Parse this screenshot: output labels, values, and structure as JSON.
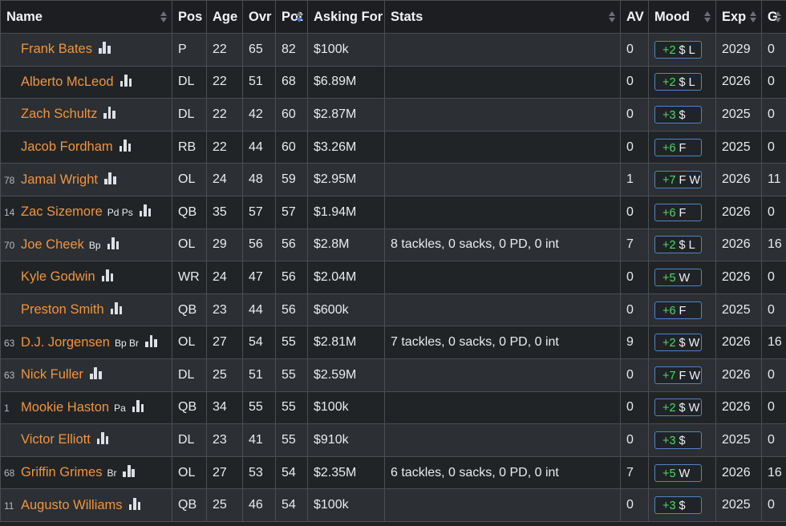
{
  "columns": [
    "Name",
    "Pos",
    "Age",
    "Ovr",
    "Pot",
    "Asking For",
    "Stats",
    "AV",
    "Mood",
    "Exp",
    "G"
  ],
  "rows": [
    {
      "rank": "",
      "name": "Frank Bates",
      "skills": "",
      "pos": "P",
      "age": "22",
      "ovr": "65",
      "pot": "82",
      "asking": "$100k",
      "stats": "",
      "av": "0",
      "mood": "+2",
      "traits": "$ L",
      "exp": "2029",
      "g": "0"
    },
    {
      "rank": "",
      "name": "Alberto McLeod",
      "skills": "",
      "pos": "DL",
      "age": "22",
      "ovr": "51",
      "pot": "68",
      "asking": "$6.89M",
      "stats": "",
      "av": "0",
      "mood": "+2",
      "traits": "$ L",
      "exp": "2026",
      "g": "0"
    },
    {
      "rank": "",
      "name": "Zach Schultz",
      "skills": "",
      "pos": "DL",
      "age": "22",
      "ovr": "42",
      "pot": "60",
      "asking": "$2.87M",
      "stats": "",
      "av": "0",
      "mood": "+3",
      "traits": "$",
      "exp": "2025",
      "g": "0"
    },
    {
      "rank": "",
      "name": "Jacob Fordham",
      "skills": "",
      "pos": "RB",
      "age": "22",
      "ovr": "44",
      "pot": "60",
      "asking": "$3.26M",
      "stats": "",
      "av": "0",
      "mood": "+6",
      "traits": "F",
      "exp": "2025",
      "g": "0"
    },
    {
      "rank": "78",
      "name": "Jamal Wright",
      "skills": "",
      "pos": "OL",
      "age": "24",
      "ovr": "48",
      "pot": "59",
      "asking": "$2.95M",
      "stats": "",
      "av": "1",
      "mood": "+7",
      "traits": "F W",
      "exp": "2026",
      "g": "11"
    },
    {
      "rank": "14",
      "name": "Zac Sizemore",
      "skills": "Pd Ps",
      "pos": "QB",
      "age": "35",
      "ovr": "57",
      "pot": "57",
      "asking": "$1.94M",
      "stats": "",
      "av": "0",
      "mood": "+6",
      "traits": "F",
      "exp": "2026",
      "g": "0"
    },
    {
      "rank": "70",
      "name": "Joe Cheek",
      "skills": "Bp",
      "pos": "OL",
      "age": "29",
      "ovr": "56",
      "pot": "56",
      "asking": "$2.8M",
      "stats": "8 tackles, 0 sacks, 0 PD, 0 int",
      "av": "7",
      "mood": "+2",
      "traits": "$ L",
      "exp": "2026",
      "g": "16"
    },
    {
      "rank": "",
      "name": "Kyle Godwin",
      "skills": "",
      "pos": "WR",
      "age": "24",
      "ovr": "47",
      "pot": "56",
      "asking": "$2.04M",
      "stats": "",
      "av": "0",
      "mood": "+5",
      "traits": "W",
      "exp": "2026",
      "g": "0"
    },
    {
      "rank": "",
      "name": "Preston Smith",
      "skills": "",
      "pos": "QB",
      "age": "23",
      "ovr": "44",
      "pot": "56",
      "asking": "$600k",
      "stats": "",
      "av": "0",
      "mood": "+6",
      "traits": "F",
      "exp": "2025",
      "g": "0"
    },
    {
      "rank": "63",
      "name": "D.J. Jorgensen",
      "skills": "Bp Br",
      "pos": "OL",
      "age": "27",
      "ovr": "54",
      "pot": "55",
      "asking": "$2.81M",
      "stats": "7 tackles, 0 sacks, 0 PD, 0 int",
      "av": "9",
      "mood": "+2",
      "traits": "$ W",
      "exp": "2026",
      "g": "16"
    },
    {
      "rank": "63",
      "name": "Nick Fuller",
      "skills": "",
      "pos": "DL",
      "age": "25",
      "ovr": "51",
      "pot": "55",
      "asking": "$2.59M",
      "stats": "",
      "av": "0",
      "mood": "+7",
      "traits": "F W",
      "exp": "2026",
      "g": "0"
    },
    {
      "rank": "1",
      "name": "Mookie Haston",
      "skills": "Pa",
      "pos": "QB",
      "age": "34",
      "ovr": "55",
      "pot": "55",
      "asking": "$100k",
      "stats": "",
      "av": "0",
      "mood": "+2",
      "traits": "$ W",
      "exp": "2026",
      "g": "0"
    },
    {
      "rank": "",
      "name": "Victor Elliott",
      "skills": "",
      "pos": "DL",
      "age": "23",
      "ovr": "41",
      "pot": "55",
      "asking": "$910k",
      "stats": "",
      "av": "0",
      "mood": "+3",
      "traits": "$",
      "exp": "2025",
      "g": "0"
    },
    {
      "rank": "68",
      "name": "Griffin Grimes",
      "skills": "Br",
      "pos": "OL",
      "age": "27",
      "ovr": "53",
      "pot": "54",
      "asking": "$2.35M",
      "stats": "6 tackles, 0 sacks, 0 PD, 0 int",
      "av": "7",
      "mood": "+5",
      "traits": "W",
      "exp": "2026",
      "g": "16"
    },
    {
      "rank": "11",
      "name": "Augusto Williams",
      "skills": "",
      "pos": "QB",
      "age": "25",
      "ovr": "46",
      "pot": "54",
      "asking": "$100k",
      "stats": "",
      "av": "0",
      "mood": "+3",
      "traits": "$",
      "exp": "2025",
      "g": "0"
    }
  ],
  "colors": {
    "player_name": "#f0943d",
    "mood_positive": "#4cd964",
    "mood_border": "#4f86c6",
    "sort_active": "#3b6fd8"
  },
  "icons": {
    "sort": "sort-arrows-icon",
    "player_chart": "bar-chart-icon"
  }
}
